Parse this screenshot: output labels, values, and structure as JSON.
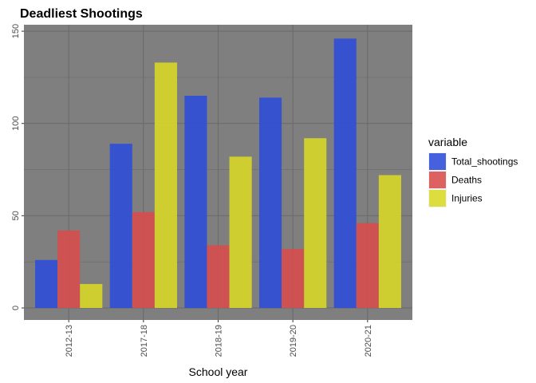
{
  "chart_data": {
    "type": "bar",
    "title": "Deadliest Shootings",
    "xlabel": "School year",
    "ylabel": "",
    "categories": [
      "2012-13",
      "2017-18",
      "2018-19",
      "2019-20",
      "2020-21"
    ],
    "series": [
      {
        "name": "Total_shootings",
        "color": "#2c4cd9",
        "values": [
          26,
          89,
          115,
          114,
          146
        ]
      },
      {
        "name": "Deaths",
        "color": "#d94c4c",
        "values": [
          42,
          52,
          34,
          32,
          46
        ]
      },
      {
        "name": "Injuries",
        "color": "#d9d926",
        "values": [
          13,
          133,
          82,
          92,
          72
        ]
      }
    ],
    "ylim": [
      -6.5,
      153.5
    ],
    "yticks": [
      0,
      50,
      100,
      150
    ],
    "legend_title": "variable",
    "legend_position": "right",
    "grid": true,
    "panel_background": "#7f7f7f",
    "grid_color": "#6b6b6b"
  }
}
